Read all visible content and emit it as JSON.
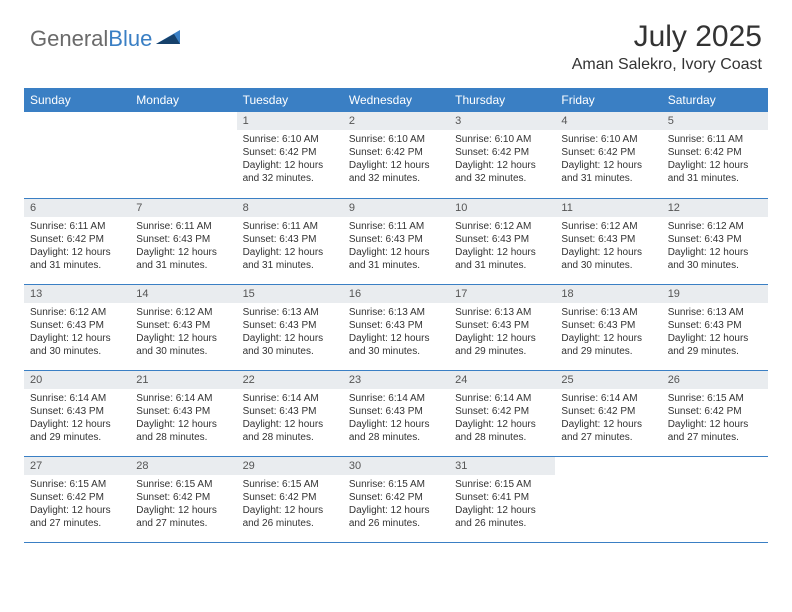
{
  "brand": {
    "part1": "General",
    "part2": "Blue"
  },
  "title": {
    "month": "July 2025",
    "location": "Aman Salekro, Ivory Coast"
  },
  "colors": {
    "header_bg": "#3a7fc4",
    "header_fg": "#ffffff",
    "daynum_bg": "#e9ecef",
    "row_border": "#3a7fc4",
    "page_bg": "#ffffff",
    "text": "#333333"
  },
  "weekdays": [
    "Sunday",
    "Monday",
    "Tuesday",
    "Wednesday",
    "Thursday",
    "Friday",
    "Saturday"
  ],
  "layout": {
    "first_weekday_index": 2,
    "days_in_month": 31
  },
  "days": {
    "1": {
      "sunrise": "6:10 AM",
      "sunset": "6:42 PM",
      "daylight": "12 hours and 32 minutes."
    },
    "2": {
      "sunrise": "6:10 AM",
      "sunset": "6:42 PM",
      "daylight": "12 hours and 32 minutes."
    },
    "3": {
      "sunrise": "6:10 AM",
      "sunset": "6:42 PM",
      "daylight": "12 hours and 32 minutes."
    },
    "4": {
      "sunrise": "6:10 AM",
      "sunset": "6:42 PM",
      "daylight": "12 hours and 31 minutes."
    },
    "5": {
      "sunrise": "6:11 AM",
      "sunset": "6:42 PM",
      "daylight": "12 hours and 31 minutes."
    },
    "6": {
      "sunrise": "6:11 AM",
      "sunset": "6:42 PM",
      "daylight": "12 hours and 31 minutes."
    },
    "7": {
      "sunrise": "6:11 AM",
      "sunset": "6:43 PM",
      "daylight": "12 hours and 31 minutes."
    },
    "8": {
      "sunrise": "6:11 AM",
      "sunset": "6:43 PM",
      "daylight": "12 hours and 31 minutes."
    },
    "9": {
      "sunrise": "6:11 AM",
      "sunset": "6:43 PM",
      "daylight": "12 hours and 31 minutes."
    },
    "10": {
      "sunrise": "6:12 AM",
      "sunset": "6:43 PM",
      "daylight": "12 hours and 31 minutes."
    },
    "11": {
      "sunrise": "6:12 AM",
      "sunset": "6:43 PM",
      "daylight": "12 hours and 30 minutes."
    },
    "12": {
      "sunrise": "6:12 AM",
      "sunset": "6:43 PM",
      "daylight": "12 hours and 30 minutes."
    },
    "13": {
      "sunrise": "6:12 AM",
      "sunset": "6:43 PM",
      "daylight": "12 hours and 30 minutes."
    },
    "14": {
      "sunrise": "6:12 AM",
      "sunset": "6:43 PM",
      "daylight": "12 hours and 30 minutes."
    },
    "15": {
      "sunrise": "6:13 AM",
      "sunset": "6:43 PM",
      "daylight": "12 hours and 30 minutes."
    },
    "16": {
      "sunrise": "6:13 AM",
      "sunset": "6:43 PM",
      "daylight": "12 hours and 30 minutes."
    },
    "17": {
      "sunrise": "6:13 AM",
      "sunset": "6:43 PM",
      "daylight": "12 hours and 29 minutes."
    },
    "18": {
      "sunrise": "6:13 AM",
      "sunset": "6:43 PM",
      "daylight": "12 hours and 29 minutes."
    },
    "19": {
      "sunrise": "6:13 AM",
      "sunset": "6:43 PM",
      "daylight": "12 hours and 29 minutes."
    },
    "20": {
      "sunrise": "6:14 AM",
      "sunset": "6:43 PM",
      "daylight": "12 hours and 29 minutes."
    },
    "21": {
      "sunrise": "6:14 AM",
      "sunset": "6:43 PM",
      "daylight": "12 hours and 28 minutes."
    },
    "22": {
      "sunrise": "6:14 AM",
      "sunset": "6:43 PM",
      "daylight": "12 hours and 28 minutes."
    },
    "23": {
      "sunrise": "6:14 AM",
      "sunset": "6:43 PM",
      "daylight": "12 hours and 28 minutes."
    },
    "24": {
      "sunrise": "6:14 AM",
      "sunset": "6:42 PM",
      "daylight": "12 hours and 28 minutes."
    },
    "25": {
      "sunrise": "6:14 AM",
      "sunset": "6:42 PM",
      "daylight": "12 hours and 27 minutes."
    },
    "26": {
      "sunrise": "6:15 AM",
      "sunset": "6:42 PM",
      "daylight": "12 hours and 27 minutes."
    },
    "27": {
      "sunrise": "6:15 AM",
      "sunset": "6:42 PM",
      "daylight": "12 hours and 27 minutes."
    },
    "28": {
      "sunrise": "6:15 AM",
      "sunset": "6:42 PM",
      "daylight": "12 hours and 27 minutes."
    },
    "29": {
      "sunrise": "6:15 AM",
      "sunset": "6:42 PM",
      "daylight": "12 hours and 26 minutes."
    },
    "30": {
      "sunrise": "6:15 AM",
      "sunset": "6:42 PM",
      "daylight": "12 hours and 26 minutes."
    },
    "31": {
      "sunrise": "6:15 AM",
      "sunset": "6:41 PM",
      "daylight": "12 hours and 26 minutes."
    }
  },
  "labels": {
    "sunrise": "Sunrise:",
    "sunset": "Sunset:",
    "daylight": "Daylight:"
  }
}
